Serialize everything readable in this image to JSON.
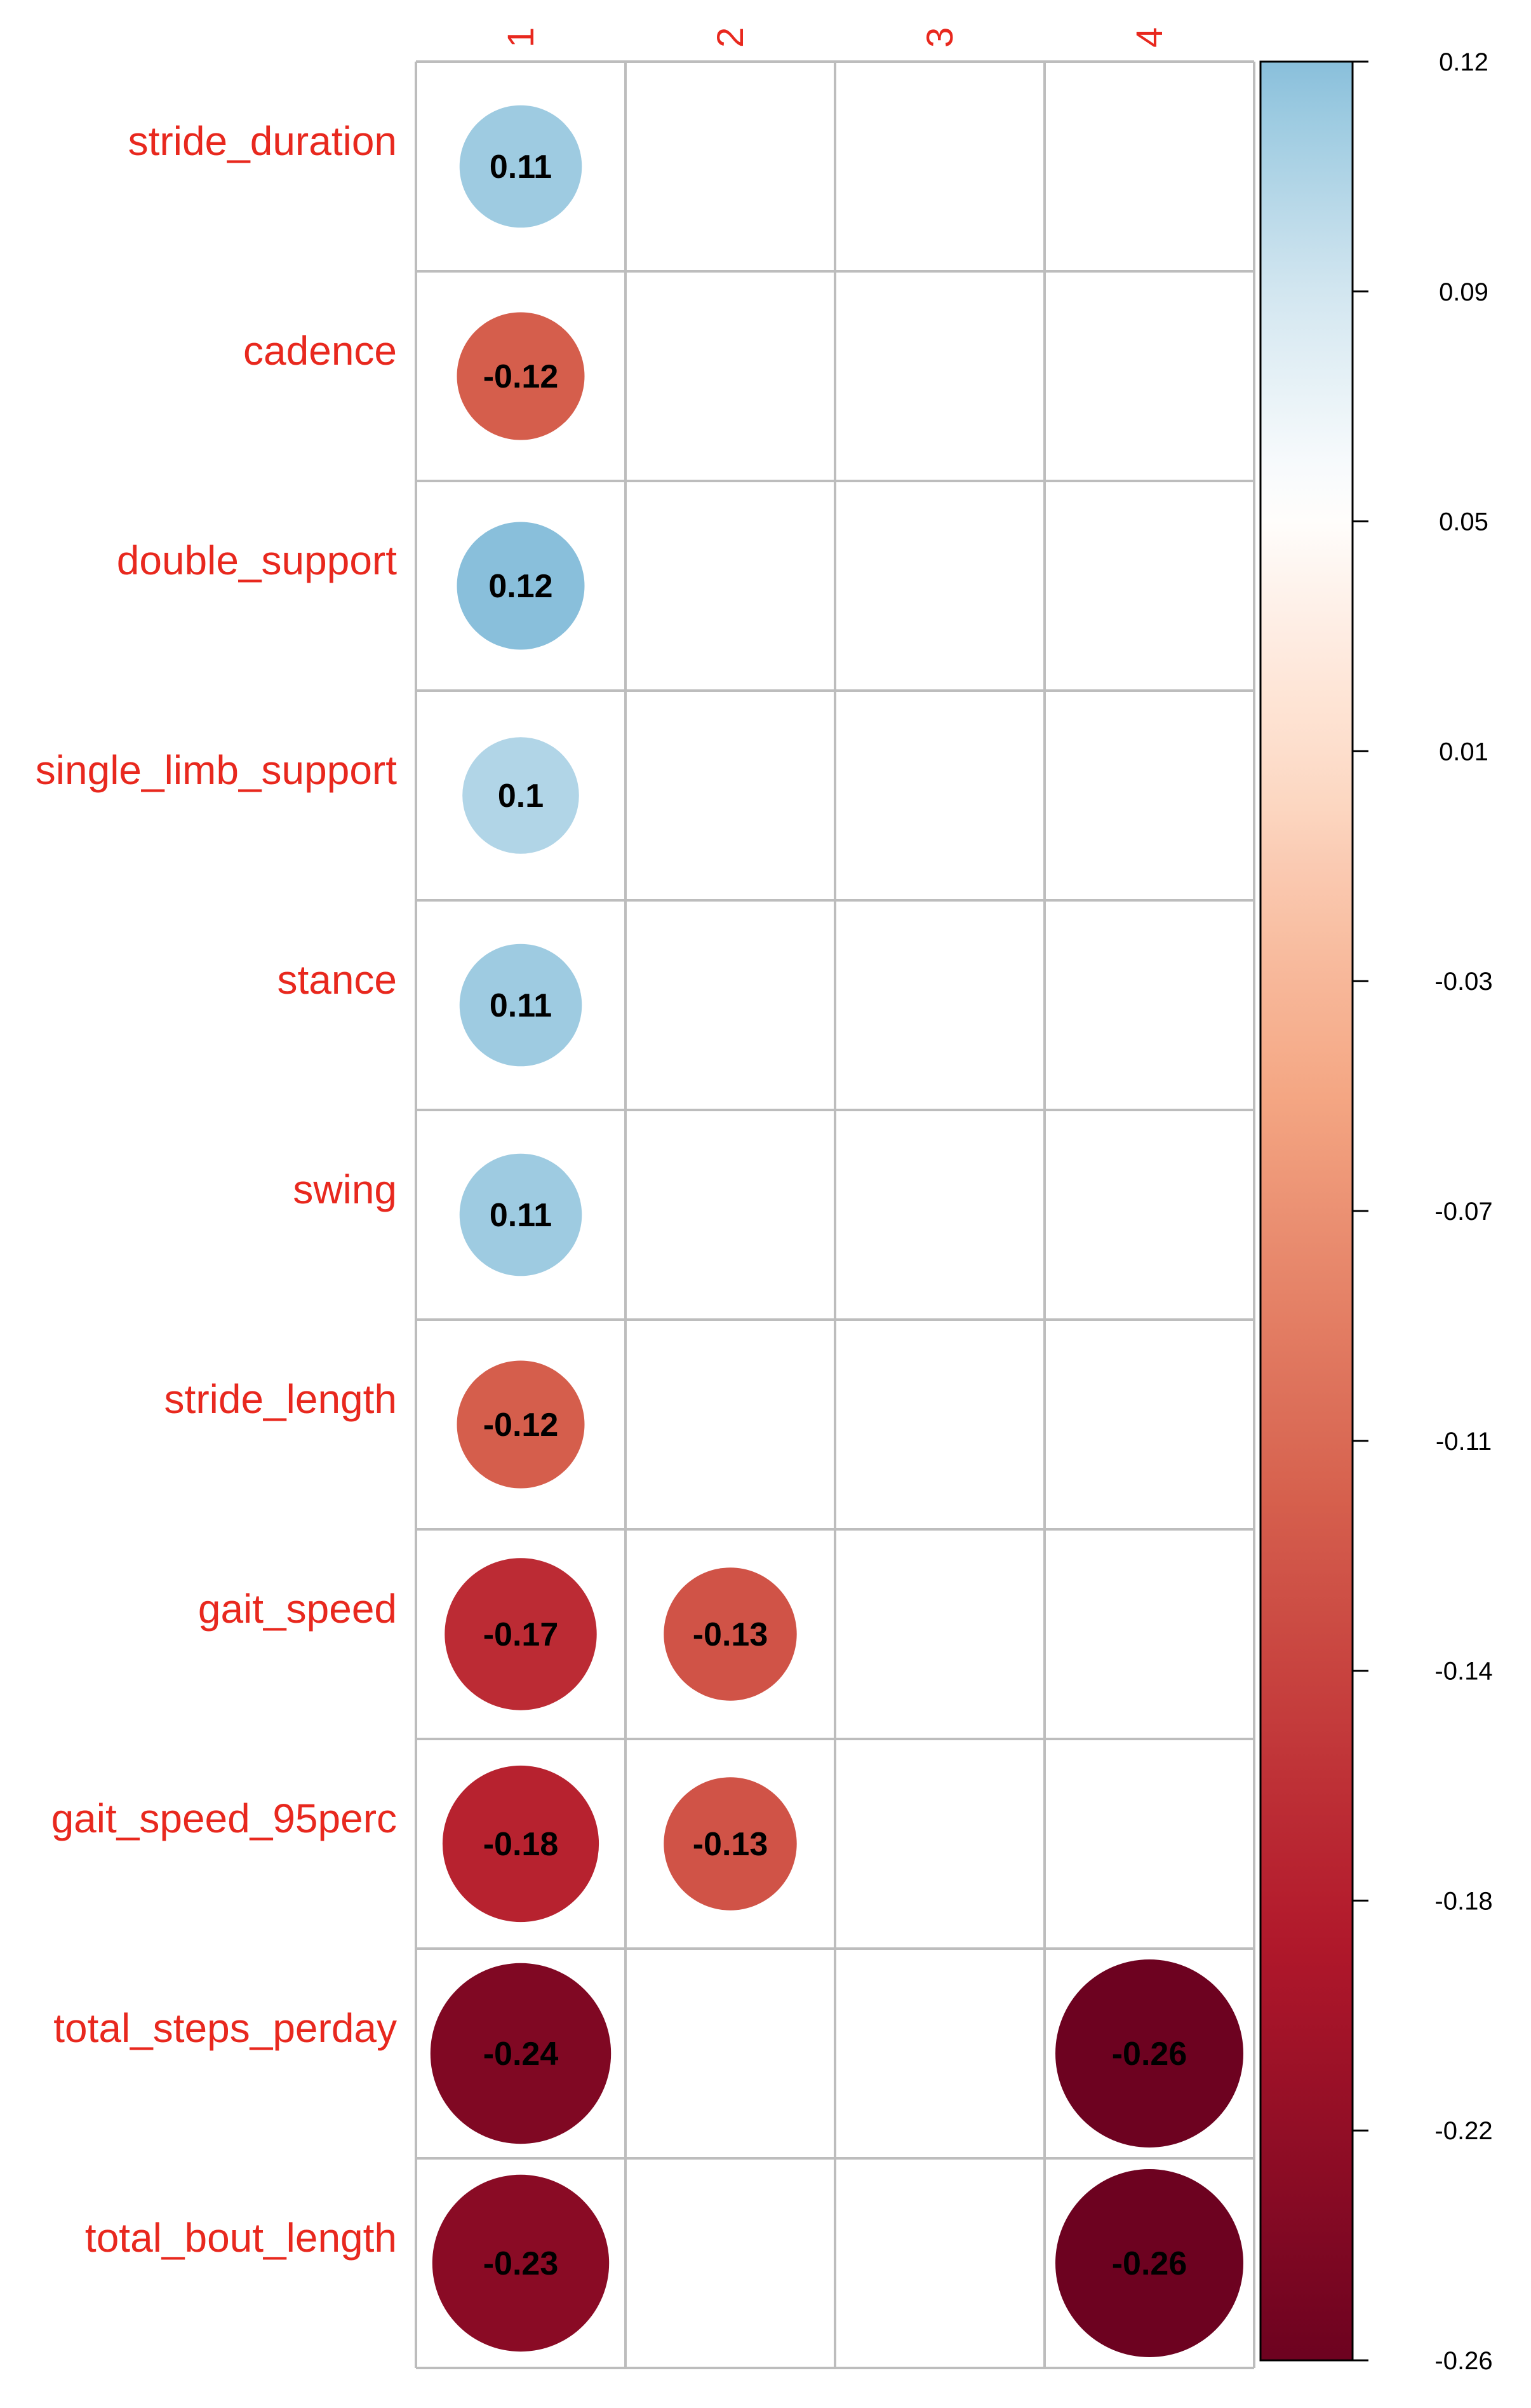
{
  "chart_data": {
    "type": "heatmap",
    "style": "correlation-circles",
    "rows": [
      "stride_duration",
      "cadence",
      "double_support",
      "single_limb_support",
      "stance",
      "swing",
      "stride_length",
      "gait_speed",
      "gait_speed_95perc",
      "total_steps_perday",
      "total_bout_length"
    ],
    "columns": [
      "1",
      "2",
      "3",
      "4"
    ],
    "values": [
      [
        0.11,
        null,
        null,
        null
      ],
      [
        -0.12,
        null,
        null,
        null
      ],
      [
        0.12,
        null,
        null,
        null
      ],
      [
        0.1,
        null,
        null,
        null
      ],
      [
        0.11,
        null,
        null,
        null
      ],
      [
        0.11,
        null,
        null,
        null
      ],
      [
        -0.12,
        null,
        null,
        null
      ],
      [
        -0.17,
        -0.13,
        null,
        null
      ],
      [
        -0.18,
        -0.13,
        null,
        null
      ],
      [
        -0.24,
        null,
        null,
        -0.26
      ],
      [
        -0.23,
        null,
        null,
        -0.26
      ]
    ],
    "labels": [
      [
        "0.11",
        "",
        "",
        ""
      ],
      [
        "-0.12",
        "",
        "",
        ""
      ],
      [
        "0.12",
        "",
        "",
        ""
      ],
      [
        "0.1",
        "",
        "",
        ""
      ],
      [
        "0.11",
        "",
        "",
        ""
      ],
      [
        "0.11",
        "",
        "",
        ""
      ],
      [
        "-0.12",
        "",
        "",
        ""
      ],
      [
        "-0.17",
        "-0.13",
        "",
        ""
      ],
      [
        "-0.18",
        "-0.13",
        "",
        ""
      ],
      [
        "-0.24",
        "",
        "",
        "-0.26"
      ],
      [
        "-0.23",
        "",
        "",
        "-0.26"
      ]
    ],
    "colorbar": {
      "range": [
        -0.26,
        0.12
      ],
      "ticks": [
        "0.12",
        "0.09",
        "0.05",
        "0.01",
        "-0.03",
        "-0.07",
        "-0.11",
        "-0.14",
        "-0.18",
        "-0.22",
        "-0.26"
      ]
    },
    "colors": {
      "label": "#e8281e",
      "grid": "#bdbdbd",
      "palette": [
        "#67001f",
        "#b2182b",
        "#d6604d",
        "#f4a582",
        "#fddbc7",
        "#ffffff",
        "#d1e5f0",
        "#92c5de",
        "#4393c3"
      ]
    }
  }
}
